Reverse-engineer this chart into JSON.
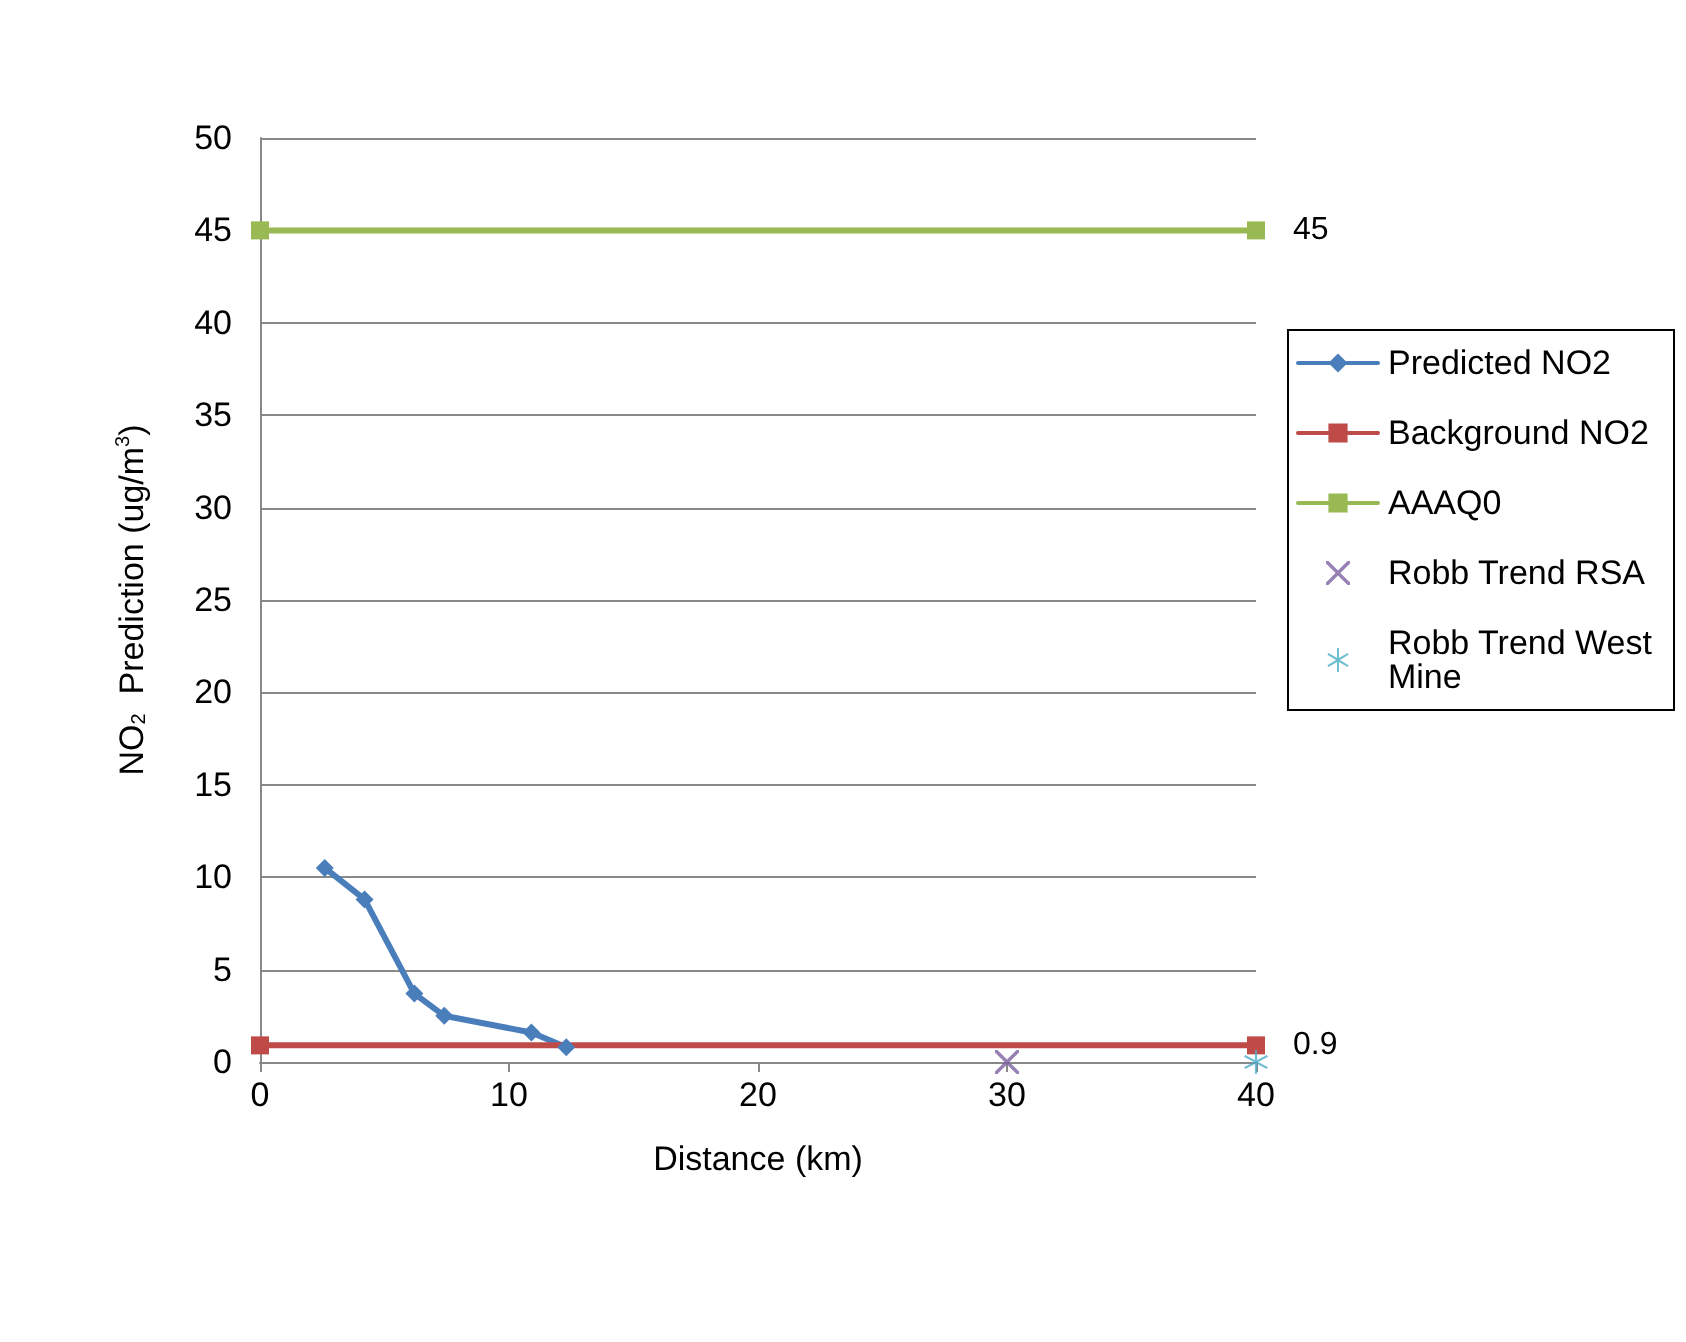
{
  "chart_data": {
    "type": "line",
    "xlabel": "Distance (km)",
    "ylabel": "NO$_{2}$  Prediction (ug/m$^{3}$)",
    "xlim": [
      0,
      40
    ],
    "xticks": [
      0,
      10,
      20,
      30,
      40
    ],
    "ylim": [
      0,
      50
    ],
    "yticks": [
      0,
      5,
      10,
      15,
      20,
      25,
      30,
      35,
      40,
      45,
      50
    ],
    "grid": "y",
    "legend": "right",
    "series": [
      {
        "name": "Predicted NO2",
        "color": "#4a7ebb",
        "marker": "diamond",
        "x": [
          2.6,
          4.2,
          6.2,
          7.4,
          10.9,
          12.3
        ],
        "values": [
          10.5,
          8.8,
          3.7,
          2.5,
          1.6,
          0.8
        ]
      },
      {
        "name": "Background NO2",
        "color": "#be4b48",
        "marker": "square",
        "x": [
          0,
          40
        ],
        "values": [
          0.9,
          0.9
        ],
        "value_labels": [
          null,
          "0.9"
        ]
      },
      {
        "name": "AAAQ0",
        "color": "#98b954",
        "marker": "square",
        "x": [
          0,
          40
        ],
        "values": [
          45,
          45
        ],
        "value_labels": [
          null,
          "45"
        ]
      },
      {
        "name": "Robb Trend RSA",
        "type": "scatter",
        "color": "#7d60a0",
        "marker": "cross",
        "x": [
          30
        ],
        "values": [
          0
        ]
      },
      {
        "name": "Robb Trend West Mine",
        "type": "scatter",
        "color": "#4bacc6",
        "marker": "star",
        "x": [
          40
        ],
        "values": [
          0
        ]
      }
    ]
  }
}
